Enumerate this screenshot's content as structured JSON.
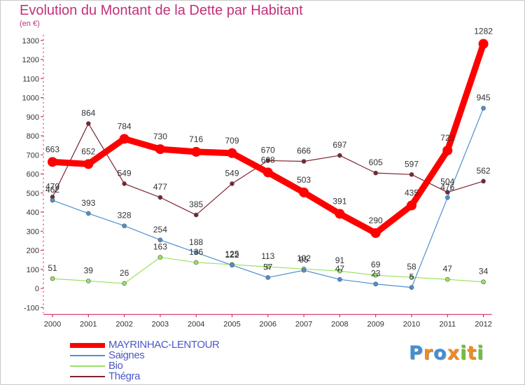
{
  "title": "Evolution du Montant de la Dette par Habitant",
  "subtitle": "(en €)",
  "chart_data": {
    "type": "line",
    "title": "Evolution du Montant de la Dette par Habitant",
    "ylabel": "(en €)",
    "xlabel": "",
    "x": [
      2000,
      2001,
      2002,
      2003,
      2004,
      2005,
      2006,
      2007,
      2008,
      2009,
      2010,
      2011,
      2012
    ],
    "ylim": [
      -100,
      1300
    ],
    "yticks": [
      -100,
      0,
      100,
      200,
      300,
      400,
      500,
      600,
      700,
      800,
      900,
      1000,
      1100,
      1200,
      1300
    ],
    "grid": false,
    "legend_position": "bottom-left",
    "series": [
      {
        "name": "MAYRINHAC-LENTOUR",
        "color": "#ff0000",
        "values": [
          663,
          652,
          784,
          730,
          716,
          709,
          608,
          503,
          391,
          290,
          435,
          723,
          1282
        ]
      },
      {
        "name": "Saignes",
        "color": "#4f8fcf",
        "values": [
          462,
          393,
          328,
          254,
          188,
          122,
          57,
          95,
          47,
          23,
          5,
          476,
          945
        ]
      },
      {
        "name": "Bio",
        "color": "#99e25f",
        "values": [
          51,
          39,
          26,
          163,
          136,
          125,
          113,
          102,
          91,
          69,
          58,
          47,
          34
        ]
      },
      {
        "name": "Thégra",
        "color": "#7b2431",
        "values": [
          479,
          864,
          549,
          477,
          385,
          549,
          670,
          666,
          697,
          605,
          597,
          504,
          562
        ]
      }
    ]
  },
  "logo": {
    "letters": [
      "P",
      "r",
      "o",
      "x",
      "i",
      "t",
      "i"
    ],
    "colors": [
      "#3f8fd8",
      "#f08a1e",
      "#3f8fd8",
      "#f08a1e",
      "#6fbf3a",
      "#f08a1e",
      "#6fbf3a"
    ]
  }
}
